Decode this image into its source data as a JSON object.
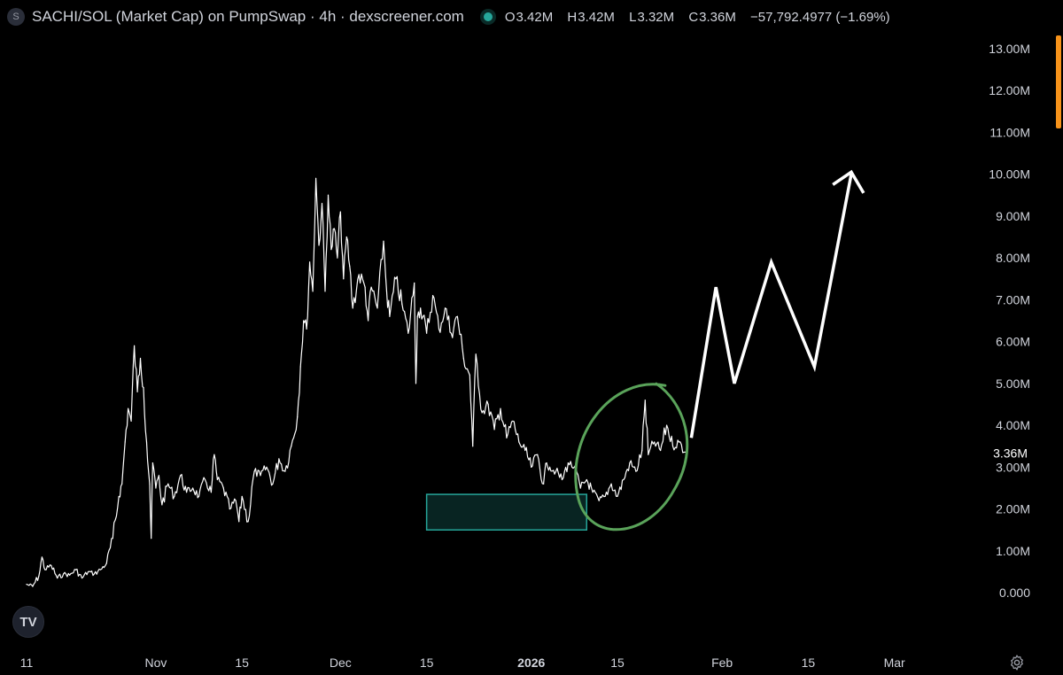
{
  "header": {
    "symbol_icon": "S",
    "title": "SACHI/SOL (Market Cap) on PumpSwap · 4h · dexscreener.com",
    "ohlc": {
      "o_label": "O",
      "o_value": "3.42M",
      "h_label": "H",
      "h_value": "3.42M",
      "l_label": "L",
      "l_value": "3.32M",
      "c_label": "C",
      "c_value": "3.36M",
      "change": "−57,792.4977 (−1.69%)"
    }
  },
  "logo": {
    "text": "TV",
    "icon": "tradingview-logo-icon"
  },
  "settings": {
    "icon": "gear-icon"
  },
  "chart_data": {
    "type": "line",
    "title": "SACHI/SOL (Market Cap) on PumpSwap · 4h · dexscreener.com",
    "y_unit": "USD market cap",
    "ylim": [
      -0.4,
      13.4
    ],
    "yticks": [
      {
        "value": 13,
        "label": "13.00M"
      },
      {
        "value": 12,
        "label": "12.00M"
      },
      {
        "value": 11,
        "label": "11.00M"
      },
      {
        "value": 10,
        "label": "10.00M"
      },
      {
        "value": 9,
        "label": "9.00M"
      },
      {
        "value": 8,
        "label": "8.00M"
      },
      {
        "value": 7,
        "label": "7.00M"
      },
      {
        "value": 6,
        "label": "6.00M"
      },
      {
        "value": 5,
        "label": "5.00M"
      },
      {
        "value": 4,
        "label": "4.00M"
      },
      {
        "value": 3,
        "label": "3.00M"
      },
      {
        "value": 2,
        "label": "2.00M"
      },
      {
        "value": 1,
        "label": "1.00M"
      },
      {
        "value": 0,
        "label": "0.000"
      }
    ],
    "last_price": {
      "value": 3.36,
      "label": "3.36M"
    },
    "xlim": [
      "2025-10-11",
      "2026-03-14"
    ],
    "xticks": [
      {
        "date": "2025-10-11",
        "label": "11",
        "bold": false
      },
      {
        "date": "2025-11-01",
        "label": "Nov",
        "bold": false
      },
      {
        "date": "2025-11-15",
        "label": "15",
        "bold": false
      },
      {
        "date": "2025-12-01",
        "label": "Dec",
        "bold": false
      },
      {
        "date": "2025-12-15",
        "label": "15",
        "bold": false
      },
      {
        "date": "2026-01-01",
        "label": "2026",
        "bold": true
      },
      {
        "date": "2026-01-15",
        "label": "15",
        "bold": false
      },
      {
        "date": "2026-02-01",
        "label": "Feb",
        "bold": false
      },
      {
        "date": "2026-02-15",
        "label": "15",
        "bold": false
      },
      {
        "date": "2026-03-01",
        "label": "Mar",
        "bold": false
      }
    ],
    "series": [
      {
        "color": "#ffffff",
        "points": [
          [
            "2025-10-11",
            0.2
          ],
          [
            "2025-10-12",
            0.15
          ],
          [
            "2025-10-13",
            0.4
          ],
          [
            "2025-10-13T12:00",
            0.85
          ],
          [
            "2025-10-14",
            0.55
          ],
          [
            "2025-10-15",
            0.65
          ],
          [
            "2025-10-16",
            0.35
          ],
          [
            "2025-10-17",
            0.45
          ],
          [
            "2025-10-18",
            0.42
          ],
          [
            "2025-10-19",
            0.55
          ],
          [
            "2025-10-20",
            0.35
          ],
          [
            "2025-10-21",
            0.5
          ],
          [
            "2025-10-22",
            0.45
          ],
          [
            "2025-10-23",
            0.55
          ],
          [
            "2025-10-24",
            0.7
          ],
          [
            "2025-10-25",
            1.3
          ],
          [
            "2025-10-26",
            2.3
          ],
          [
            "2025-10-26T12:00",
            2.6
          ],
          [
            "2025-10-27",
            3.6
          ],
          [
            "2025-10-27T12:00",
            4.4
          ],
          [
            "2025-10-28",
            4.1
          ],
          [
            "2025-10-28T12:00",
            5.9
          ],
          [
            "2025-10-29",
            4.8
          ],
          [
            "2025-10-29T12:00",
            5.6
          ],
          [
            "2025-10-30",
            4.9
          ],
          [
            "2025-10-30T12:00",
            3.6
          ],
          [
            "2025-10-31",
            2.6
          ],
          [
            "2025-10-31T06:00",
            1.3
          ],
          [
            "2025-10-31T12:00",
            3.1
          ],
          [
            "2025-11-01",
            2.5
          ],
          [
            "2025-11-01T12:00",
            2.8
          ],
          [
            "2025-11-02",
            2.1
          ],
          [
            "2025-11-03",
            2.6
          ],
          [
            "2025-11-04",
            2.3
          ],
          [
            "2025-11-05",
            2.8
          ],
          [
            "2025-11-06",
            2.4
          ],
          [
            "2025-11-07",
            2.5
          ],
          [
            "2025-11-08",
            2.3
          ],
          [
            "2025-11-09",
            2.7
          ],
          [
            "2025-11-10",
            2.4
          ],
          [
            "2025-11-10T12:00",
            3.3
          ],
          [
            "2025-11-11",
            2.7
          ],
          [
            "2025-11-12",
            2.5
          ],
          [
            "2025-11-13",
            2.0
          ],
          [
            "2025-11-14",
            2.2
          ],
          [
            "2025-11-14T12:00",
            1.7
          ],
          [
            "2025-11-15",
            2.3
          ],
          [
            "2025-11-16",
            1.7
          ],
          [
            "2025-11-17",
            2.9
          ],
          [
            "2025-11-18",
            2.8
          ],
          [
            "2025-11-19",
            3.0
          ],
          [
            "2025-11-20",
            2.6
          ],
          [
            "2025-11-21",
            3.2
          ],
          [
            "2025-11-22",
            2.9
          ],
          [
            "2025-11-23",
            3.5
          ],
          [
            "2025-11-24",
            4.2
          ],
          [
            "2025-11-24T12:00",
            5.4
          ],
          [
            "2025-11-25",
            6.5
          ],
          [
            "2025-11-25T12:00",
            6.3
          ],
          [
            "2025-11-26",
            7.9
          ],
          [
            "2025-11-26T12:00",
            7.2
          ],
          [
            "2025-11-27",
            9.9
          ],
          [
            "2025-11-27T12:00",
            8.3
          ],
          [
            "2025-11-28",
            9.3
          ],
          [
            "2025-11-28T12:00",
            7.2
          ],
          [
            "2025-11-29",
            9.5
          ],
          [
            "2025-11-29T12:00",
            8.2
          ],
          [
            "2025-11-30",
            8.7
          ],
          [
            "2025-11-30T12:00",
            8.0
          ],
          [
            "2025-12-01",
            9.1
          ],
          [
            "2025-12-01T12:00",
            7.5
          ],
          [
            "2025-12-02",
            8.5
          ],
          [
            "2025-12-02T12:00",
            7.8
          ],
          [
            "2025-12-03",
            6.8
          ],
          [
            "2025-12-04",
            7.6
          ],
          [
            "2025-12-05",
            7.3
          ],
          [
            "2025-12-05T12:00",
            6.5
          ],
          [
            "2025-12-06",
            7.3
          ],
          [
            "2025-12-07",
            6.8
          ],
          [
            "2025-12-08",
            8.4
          ],
          [
            "2025-12-08T12:00",
            7.2
          ],
          [
            "2025-12-09",
            6.6
          ],
          [
            "2025-12-10",
            7.5
          ],
          [
            "2025-12-11",
            6.9
          ],
          [
            "2025-12-12",
            6.2
          ],
          [
            "2025-12-13",
            7.4
          ],
          [
            "2025-12-13T06:00",
            5.0
          ],
          [
            "2025-12-13T12:00",
            6.6
          ],
          [
            "2025-12-14",
            6.8
          ],
          [
            "2025-12-15",
            6.2
          ],
          [
            "2025-12-16",
            7.1
          ],
          [
            "2025-12-17",
            6.3
          ],
          [
            "2025-12-18",
            6.8
          ],
          [
            "2025-12-19",
            6.2
          ],
          [
            "2025-12-20",
            6.6
          ],
          [
            "2025-12-21",
            5.6
          ],
          [
            "2025-12-22",
            5.2
          ],
          [
            "2025-12-22T12:00",
            3.5
          ],
          [
            "2025-12-23",
            5.7
          ],
          [
            "2025-12-24",
            4.3
          ],
          [
            "2025-12-25",
            4.5
          ],
          [
            "2025-12-26",
            3.9
          ],
          [
            "2025-12-27",
            4.4
          ],
          [
            "2025-12-28",
            3.7
          ],
          [
            "2025-12-29",
            4.1
          ],
          [
            "2025-12-30",
            3.6
          ],
          [
            "2025-12-31",
            3.4
          ],
          [
            "2026-01-01",
            3.0
          ],
          [
            "2026-01-02",
            3.3
          ],
          [
            "2026-01-03",
            2.6
          ],
          [
            "2026-01-03T12:00",
            3.1
          ],
          [
            "2026-01-04",
            3.0
          ],
          [
            "2026-01-05",
            2.9
          ],
          [
            "2026-01-06",
            2.7
          ],
          [
            "2026-01-07",
            3.1
          ],
          [
            "2026-01-08",
            3.0
          ],
          [
            "2026-01-09",
            2.5
          ],
          [
            "2026-01-10",
            2.7
          ],
          [
            "2026-01-11",
            2.4
          ],
          [
            "2026-01-12",
            2.2
          ],
          [
            "2026-01-13",
            2.3
          ],
          [
            "2026-01-14",
            2.6
          ],
          [
            "2026-01-15",
            2.3
          ],
          [
            "2026-01-16",
            2.7
          ],
          [
            "2026-01-17",
            3.1
          ],
          [
            "2026-01-18",
            2.9
          ],
          [
            "2026-01-19",
            3.4
          ],
          [
            "2026-01-19T12:00",
            4.6
          ],
          [
            "2026-01-20",
            3.3
          ],
          [
            "2026-01-21",
            3.6
          ],
          [
            "2026-01-22",
            3.4
          ],
          [
            "2026-01-23",
            4.0
          ],
          [
            "2026-01-24",
            3.5
          ],
          [
            "2026-01-25",
            3.6
          ],
          [
            "2026-01-26",
            3.36
          ]
        ]
      }
    ],
    "annotations": {
      "arrow_points": [
        [
          "2026-01-27",
          3.7
        ],
        [
          "2026-01-31",
          7.3
        ],
        [
          "2026-02-03",
          5.0
        ],
        [
          "2026-02-09",
          7.9
        ],
        [
          "2026-02-16",
          5.4
        ],
        [
          "2026-02-22",
          10.0
        ]
      ],
      "arrow_head": [
        [
          "2026-02-19",
          9.75
        ],
        [
          "2026-02-22",
          10.05
        ],
        [
          "2026-02-24",
          9.55
        ]
      ],
      "support_zone": {
        "x0": "2025-12-15",
        "x1": "2026-01-10",
        "y0": 1.5,
        "y1": 2.35,
        "color": "#26a69a"
      },
      "circle": {
        "cx": "2026-01-17",
        "cy": 3.3,
        "color": "#5aa35a"
      }
    }
  },
  "colors": {
    "background": "#000000",
    "line": "#ffffff",
    "axis_text": "#d1d4dc",
    "support_zone": "#26a69a",
    "circle": "#5aa35a",
    "status_dot": "#26a69a",
    "scrollbar": "#f7931a"
  }
}
